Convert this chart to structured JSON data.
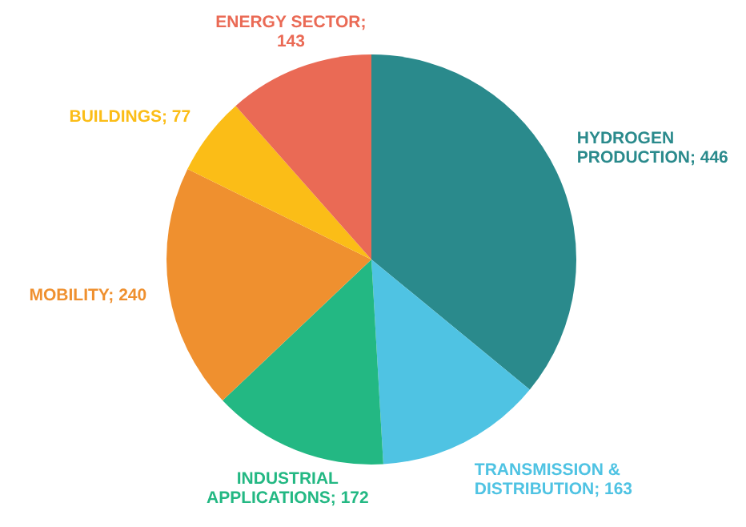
{
  "chart_data": {
    "type": "pie",
    "categories": [
      "HYDROGEN PRODUCTION",
      "TRANSMISSION & DISTRIBUTION",
      "INDUSTRIAL APPLICATIONS",
      "MOBILITY",
      "BUILDINGS",
      "ENERGY SECTOR"
    ],
    "values": [
      446,
      163,
      172,
      240,
      77,
      143
    ],
    "value_labels": [
      "; 446",
      "; 163",
      "; 172",
      "; 240",
      "; 77",
      "; 143"
    ],
    "colors": [
      "#2a8a8c",
      "#4fc3e3",
      "#23b883",
      "#ef902f",
      "#fbbd17",
      "#ea6a55"
    ]
  }
}
